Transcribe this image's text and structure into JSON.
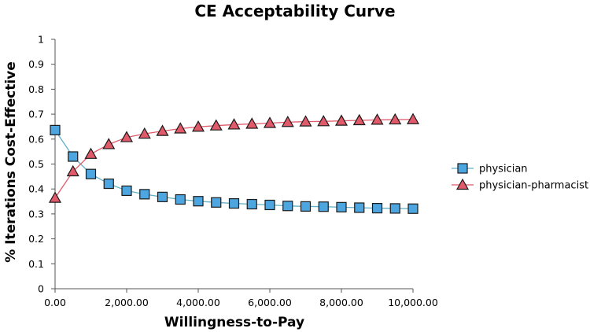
{
  "chart_data": {
    "type": "line",
    "title": "CE Acceptability Curve",
    "xlabel": "Willingness-to-Pay",
    "ylabel": "% Iterations Cost-Effective",
    "xlim": [
      0,
      10000
    ],
    "ylim": [
      0,
      1
    ],
    "x_ticks": [
      "0.00",
      "2,000.00",
      "4,000.00",
      "6,000.00",
      "8,000.00",
      "10,000.00"
    ],
    "y_ticks": [
      "0",
      "0.1",
      "0.2",
      "0.3",
      "0.4",
      "0.5",
      "0.6",
      "0.7",
      "0.8",
      "0.9",
      "1"
    ],
    "grid": false,
    "legend_position": "right",
    "x": [
      0,
      500,
      1000,
      1500,
      2000,
      2500,
      3000,
      3500,
      4000,
      4500,
      5000,
      5500,
      6000,
      6500,
      7000,
      7500,
      8000,
      8500,
      9000,
      9500,
      10000
    ],
    "series": [
      {
        "name": "physician",
        "marker": "square",
        "color": "#4da6e0",
        "line_color": "#5fb0c8",
        "values": [
          0.636,
          0.53,
          0.46,
          0.421,
          0.393,
          0.379,
          0.368,
          0.358,
          0.351,
          0.346,
          0.342,
          0.339,
          0.336,
          0.332,
          0.33,
          0.329,
          0.327,
          0.325,
          0.323,
          0.322,
          0.321
        ]
      },
      {
        "name": "physician-pharmacist",
        "marker": "triangle",
        "color": "#e05a6a",
        "line_color": "#e05a6a",
        "values": [
          0.364,
          0.47,
          0.54,
          0.579,
          0.607,
          0.621,
          0.632,
          0.642,
          0.649,
          0.654,
          0.658,
          0.661,
          0.664,
          0.668,
          0.67,
          0.671,
          0.673,
          0.675,
          0.677,
          0.678,
          0.679
        ]
      }
    ]
  }
}
